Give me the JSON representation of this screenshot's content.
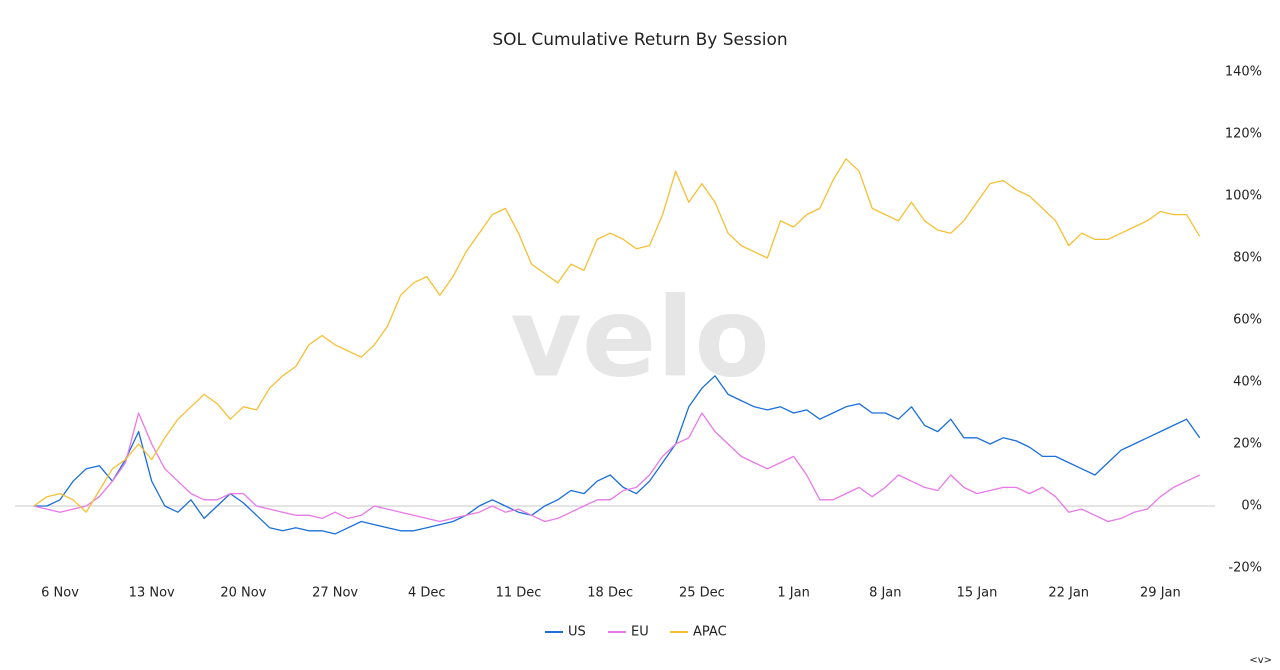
{
  "chart_data": {
    "type": "line",
    "title": "SOL Cumulative Return By Session",
    "watermark": "velo",
    "corner_label": "<v>",
    "categories": [
      null,
      null,
      "6 Nov",
      null,
      null,
      null,
      null,
      null,
      null,
      "13 Nov",
      null,
      null,
      null,
      null,
      null,
      null,
      "20 Nov",
      null,
      null,
      null,
      null,
      null,
      null,
      "27 Nov",
      null,
      null,
      null,
      null,
      null,
      null,
      "4 Dec",
      null,
      null,
      null,
      null,
      null,
      null,
      "11 Dec",
      null,
      null,
      null,
      null,
      null,
      null,
      "18 Dec",
      null,
      null,
      null,
      null,
      null,
      null,
      "25 Dec",
      null,
      null,
      null,
      null,
      null,
      null,
      "1 Jan",
      null,
      null,
      null,
      null,
      null,
      null,
      "8 Jan",
      null,
      null,
      null,
      null,
      null,
      null,
      "15 Jan",
      null,
      null,
      null,
      null,
      null,
      null,
      "22 Jan",
      null,
      null,
      null,
      null,
      null,
      null,
      "29 Jan",
      null,
      null,
      null
    ],
    "series": [
      {
        "name": "US",
        "color": "#1a6fdb",
        "values": [
          0,
          0,
          2,
          8,
          12,
          13,
          8,
          15,
          24,
          8,
          0,
          -2,
          2,
          -4,
          0,
          4,
          1,
          -3,
          -7,
          -8,
          -7,
          -8,
          -8,
          -9,
          -7,
          -5,
          -6,
          -7,
          -8,
          -8,
          -7,
          -6,
          -5,
          -3,
          0,
          2,
          0,
          -2,
          -3,
          0,
          2,
          5,
          4,
          8,
          10,
          6,
          4,
          8,
          14,
          20,
          32,
          38,
          42,
          36,
          34,
          32,
          31,
          32,
          30,
          31,
          28,
          30,
          32,
          33,
          30,
          30,
          28,
          32,
          26,
          24,
          28,
          22,
          22,
          20,
          22,
          21,
          19,
          16,
          16,
          14,
          12,
          10,
          14,
          18,
          20,
          22,
          24,
          26,
          28,
          22
        ]
      },
      {
        "name": "EU",
        "color": "#e879e8",
        "values": [
          0,
          -1,
          -2,
          -1,
          0,
          3,
          8,
          14,
          30,
          20,
          12,
          8,
          4,
          2,
          2,
          4,
          4,
          0,
          -1,
          -2,
          -3,
          -3,
          -4,
          -2,
          -4,
          -3,
          0,
          -1,
          -2,
          -3,
          -4,
          -5,
          -4,
          -3,
          -2,
          0,
          -2,
          -1,
          -3,
          -5,
          -4,
          -2,
          0,
          2,
          2,
          5,
          6,
          10,
          16,
          20,
          22,
          30,
          24,
          20,
          16,
          14,
          12,
          14,
          16,
          10,
          2,
          2,
          4,
          6,
          3,
          6,
          10,
          8,
          6,
          5,
          10,
          6,
          4,
          5,
          6,
          6,
          4,
          6,
          3,
          -2,
          -1,
          -3,
          -5,
          -4,
          -2,
          -1,
          3,
          6,
          8,
          10
        ]
      },
      {
        "name": "APAC",
        "color": "#f5c034",
        "values": [
          0,
          3,
          4,
          2,
          -2,
          5,
          12,
          15,
          20,
          15,
          22,
          28,
          32,
          36,
          33,
          28,
          32,
          31,
          38,
          42,
          45,
          52,
          55,
          52,
          50,
          48,
          52,
          58,
          68,
          72,
          74,
          68,
          74,
          82,
          88,
          94,
          96,
          88,
          78,
          75,
          72,
          78,
          76,
          86,
          88,
          86,
          83,
          84,
          94,
          108,
          98,
          104,
          98,
          88,
          84,
          82,
          80,
          92,
          90,
          94,
          96,
          105,
          112,
          108,
          96,
          94,
          92,
          98,
          92,
          89,
          88,
          92,
          98,
          104,
          105,
          102,
          100,
          96,
          92,
          84,
          88,
          86,
          86,
          88,
          90,
          92,
          95,
          94,
          94,
          87
        ]
      }
    ],
    "ylim": [
      -20,
      140
    ],
    "yticks": [
      {
        "value": -20,
        "label": "-20%"
      },
      {
        "value": 0,
        "label": "0%"
      },
      {
        "value": 20,
        "label": "20%"
      },
      {
        "value": 40,
        "label": "40%"
      },
      {
        "value": 60,
        "label": "60%"
      },
      {
        "value": 80,
        "label": "80%"
      },
      {
        "value": 100,
        "label": "100%"
      },
      {
        "value": 120,
        "label": "120%"
      },
      {
        "value": 140,
        "label": "140%"
      }
    ],
    "legend": "bottom"
  }
}
